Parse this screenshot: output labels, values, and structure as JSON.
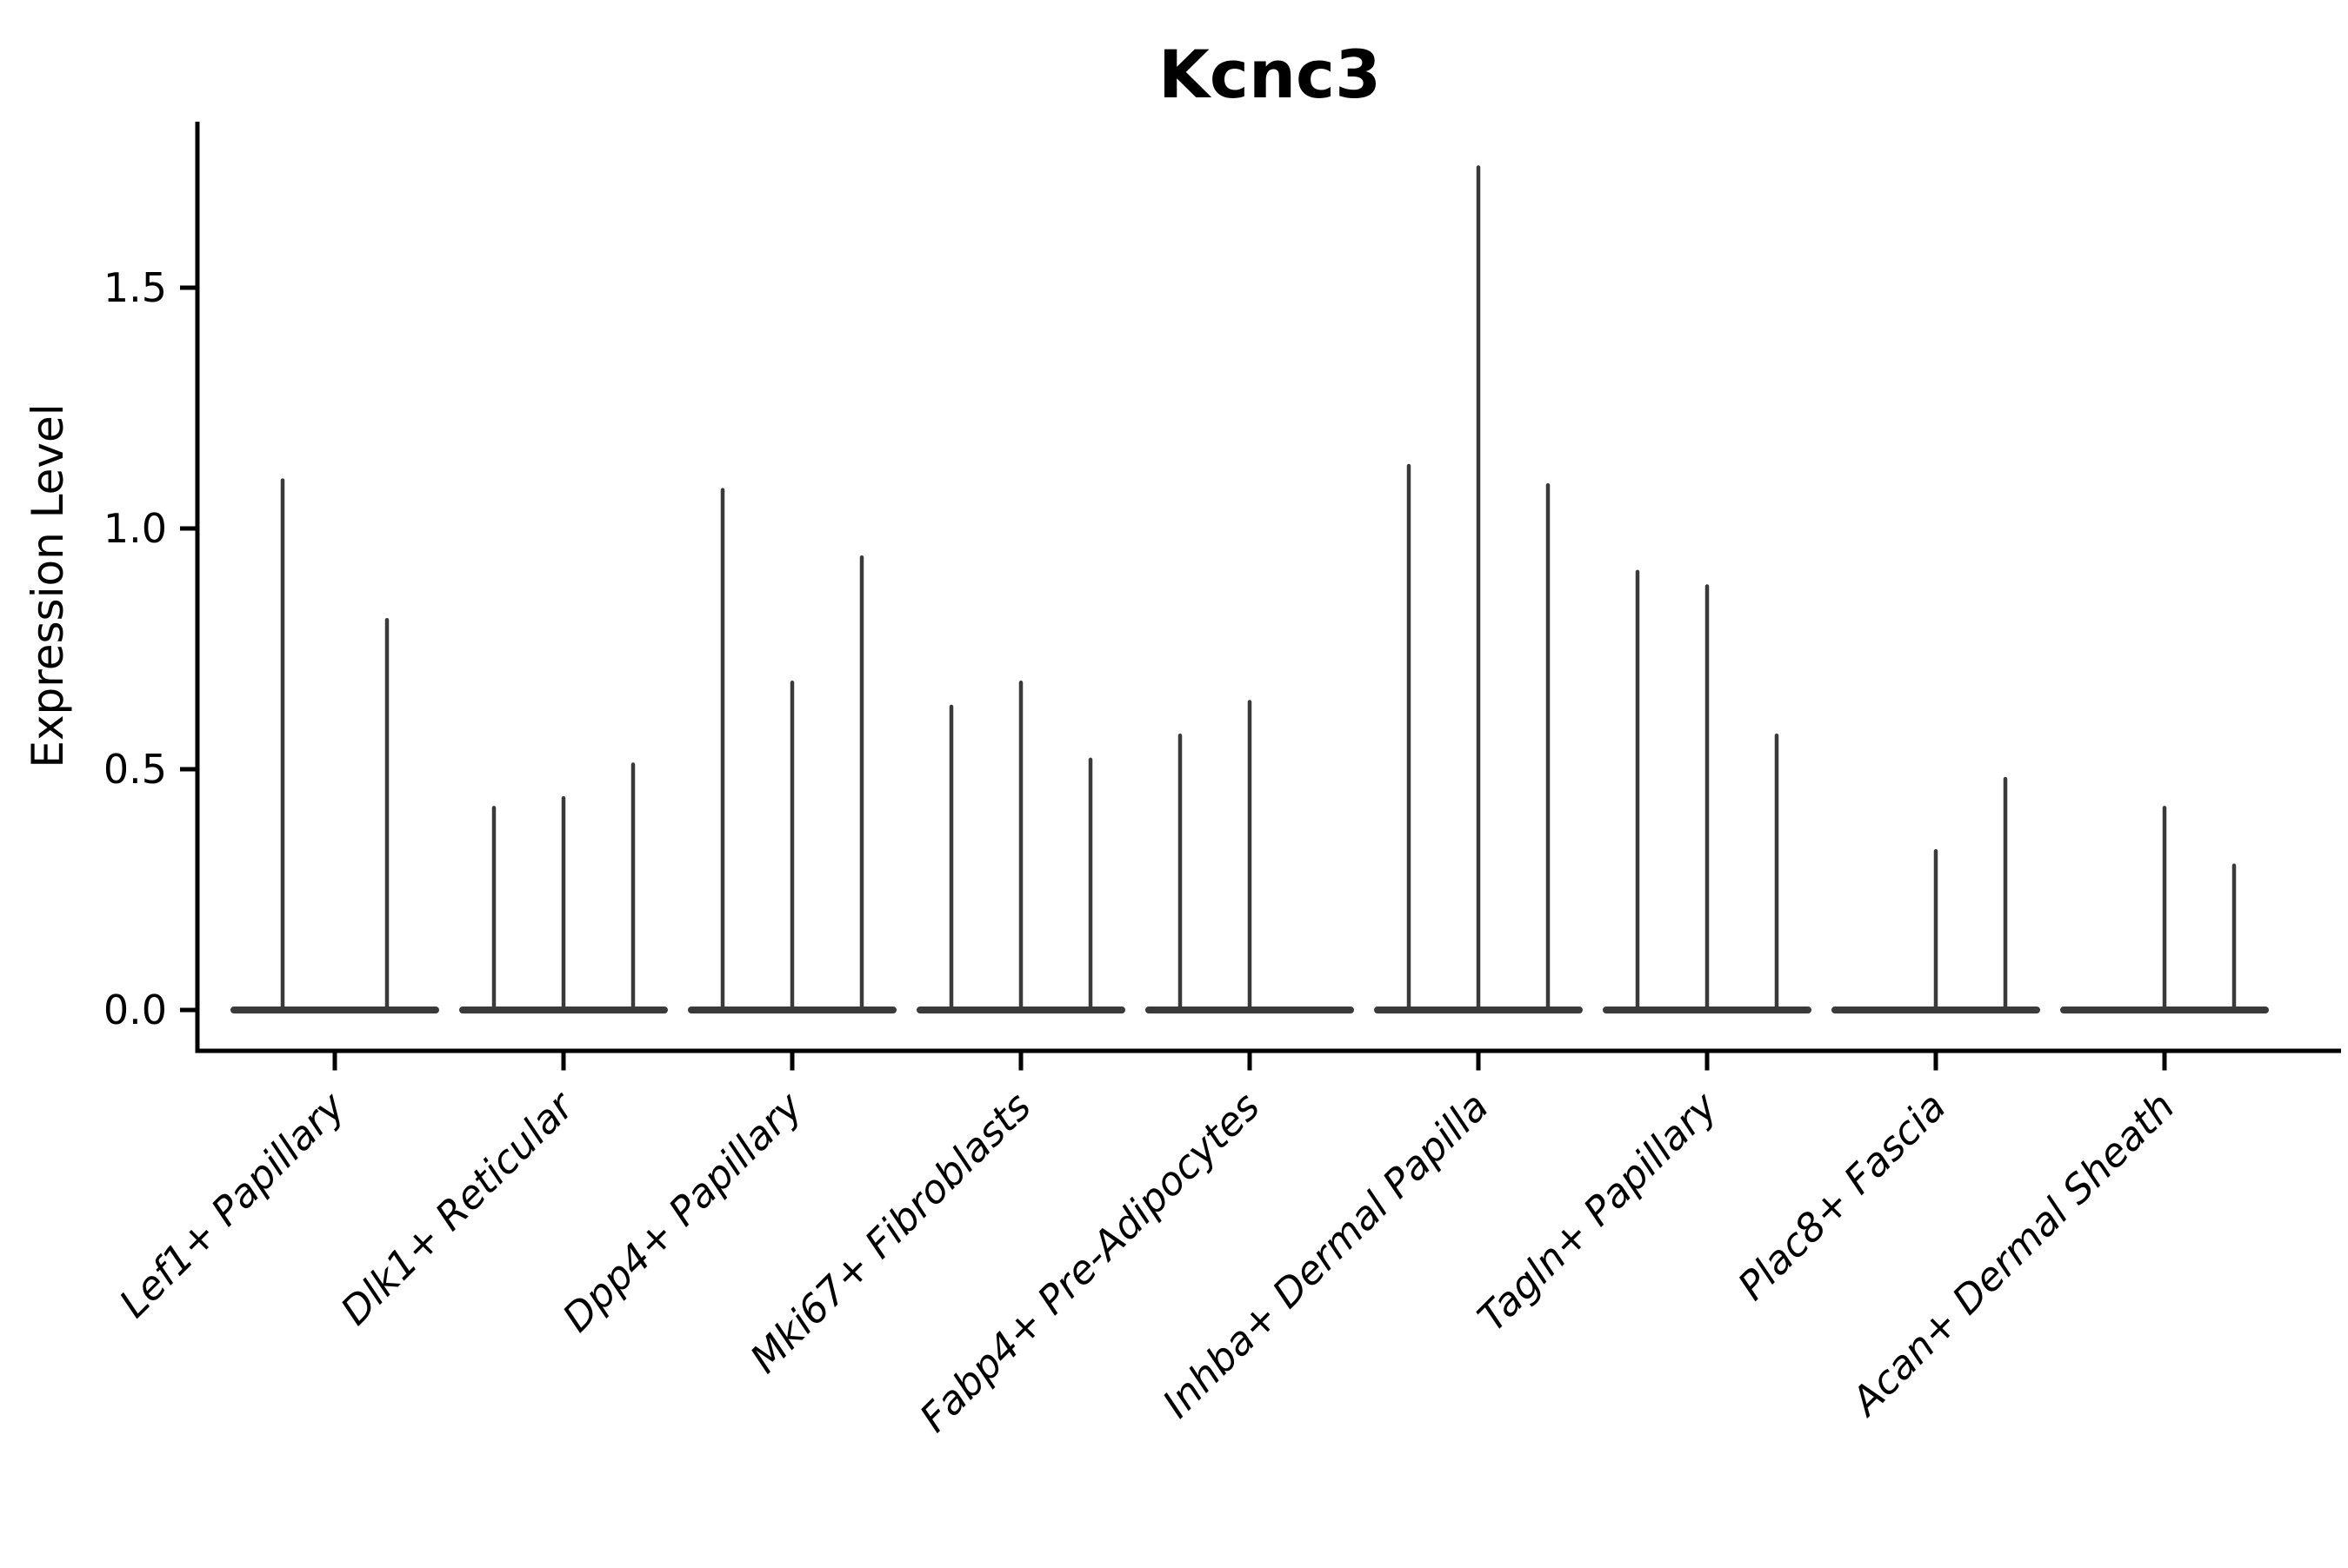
{
  "title": "Kcnc3",
  "chart_data": {
    "type": "violin",
    "title": "Kcnc3",
    "xlabel": "",
    "ylabel": "Expression Level",
    "y_tick_labels": [
      "0.0",
      "0.5",
      "1.0",
      "1.5"
    ],
    "y_tick_values": [
      0.0,
      0.5,
      1.0,
      1.5
    ],
    "ylim": [
      0,
      1.75
    ],
    "grid": false,
    "legend": null,
    "description": "Each category holds flattened violins at 0 with a thin vertical spike up to the listed maximum expression; 0 means a flat violin with no spike.",
    "categories": [
      "Lef1+ Papillary",
      "Dlk1+ Reticular",
      "Dpp4+ Papillary",
      "Mki67+ Fibroblasts",
      "Fabp4+ Pre-Adipocytes",
      "Inhba+ Dermal Papilla",
      "Tagln+ Papillary",
      "Plac8+ Fascia",
      "Acan+ Dermal Sheath"
    ],
    "groups": [
      {
        "category": "Lef1+ Papillary",
        "spike_maxima": [
          1.1,
          0.81
        ]
      },
      {
        "category": "Dlk1+ Reticular",
        "spike_maxima": [
          0.42,
          0.44,
          0.51
        ]
      },
      {
        "category": "Dpp4+ Papillary",
        "spike_maxima": [
          1.08,
          0.68,
          0.94
        ]
      },
      {
        "category": "Mki67+ Fibroblasts",
        "spike_maxima": [
          0.63,
          0.68,
          0.52
        ]
      },
      {
        "category": "Fabp4+ Pre-Adipocytes",
        "spike_maxima": [
          0.57,
          0.64,
          0
        ]
      },
      {
        "category": "Inhba+ Dermal Papilla",
        "spike_maxima": [
          1.13,
          1.75,
          1.09
        ]
      },
      {
        "category": "Tagln+ Papillary",
        "spike_maxima": [
          0.91,
          0.88,
          0.57
        ]
      },
      {
        "category": "Plac8+ Fascia",
        "spike_maxima": [
          0,
          0.33,
          0.48
        ]
      },
      {
        "category": "Acan+ Dermal Sheath",
        "spike_maxima": [
          0,
          0.42,
          0.3
        ]
      }
    ],
    "colors": {
      "violin": "#3a3a3a",
      "axis": "#000000",
      "text": "#000000",
      "background": "#ffffff"
    }
  }
}
